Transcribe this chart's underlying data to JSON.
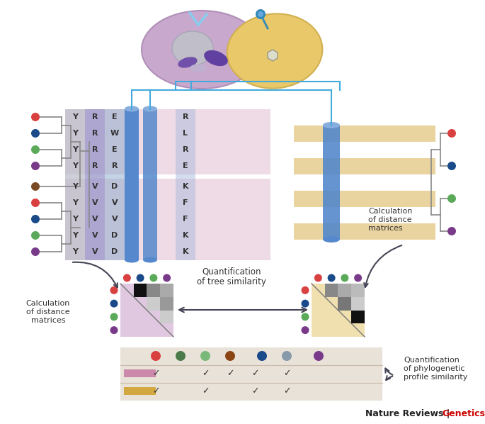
{
  "figsize": [
    6.85,
    5.98
  ],
  "dpi": 100,
  "left_dot_colors": [
    "#d94040",
    "#1a4a8a",
    "#5aaa5a",
    "#7a3a8a",
    "#7a4a25",
    "#d94040",
    "#1a4a8a",
    "#5aaa5a",
    "#7a3a8a"
  ],
  "right_dot_colors": [
    "#d94040",
    "#1a4a8a",
    "#5aaa5a",
    "#7a3a8a"
  ],
  "mat_left_dot_colors_top": [
    "#d94040",
    "#1a4a8a",
    "#5aaa5a",
    "#7a3a8a"
  ],
  "mat_left_dot_colors_side": [
    "#d94040",
    "#1a4a8a",
    "#5aaa5a",
    "#7a3a8a"
  ],
  "mat_right_dot_colors_top": [
    "#d94040",
    "#1a4a8a",
    "#5aaa5a",
    "#7a3a8a"
  ],
  "mat_right_dot_colors_side": [
    "#d94040",
    "#1a4a8a",
    "#5aaa5a",
    "#7a3a8a"
  ],
  "table_dot_colors": [
    "#d94040",
    "#4a7a4a",
    "#7ab87a",
    "#8b4513",
    "#1a4a8a",
    "#8899aa",
    "#7a3a8a"
  ],
  "col1": [
    "Y",
    "Y",
    "Y",
    "Y",
    "Y",
    "Y",
    "Y",
    "Y",
    "Y"
  ],
  "col2": [
    "R",
    "R",
    "R",
    "R",
    "V",
    "V",
    "V",
    "V",
    "V"
  ],
  "col3": [
    "E",
    "W",
    "E",
    "R",
    "D",
    "V",
    "V",
    "D",
    "D"
  ],
  "col4": [
    "R",
    "L",
    "R",
    "E",
    "K",
    "F",
    "F",
    "K",
    "K"
  ],
  "pink_stripe": "#cc88aa",
  "yellow_stripe": "#d4a840",
  "helix_blue": "#5588cc",
  "helix_light": "#88aedd",
  "col1_bg": "#b8bcc8",
  "col2_bg": "#9090c8",
  "col3_bg": "#88aacc",
  "col4_bg": "#aabbdd",
  "mat_left_bg": "#e0c8e0",
  "mat_right_bg": "#f0e0b0",
  "mat_left_upper": [
    "#111111",
    "#888888",
    "#aaaaaa",
    "#cccccc",
    "#999999",
    "#cccccc"
  ],
  "mat_right_upper": [
    "#888888",
    "#aaaaaa",
    "#777777",
    "#cccccc",
    "#111111",
    "#bbbbbb"
  ],
  "table_bg": "#e8e2d8",
  "tree_color": "#888888",
  "blue_line": "#44aadd",
  "footer_black": "Nature Reviews | ",
  "footer_red": "Genetics",
  "arrow_color": "#444455"
}
